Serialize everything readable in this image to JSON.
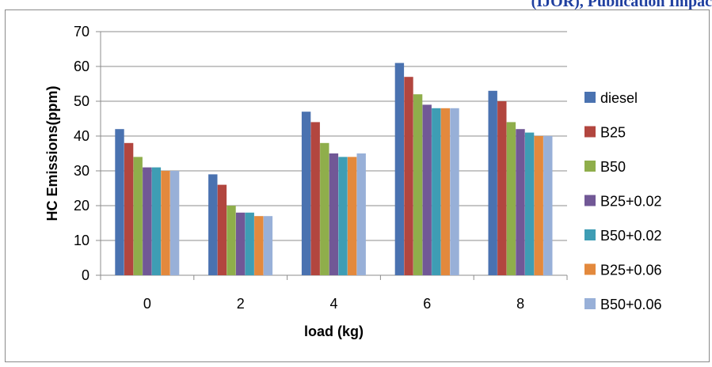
{
  "header": {
    "fragment": "(IJOR), Publication Impac"
  },
  "chart_data": {
    "type": "bar",
    "title": "",
    "xlabel": "load (kg)",
    "ylabel": "HC Emissions(ppm)",
    "ylim": [
      0,
      70
    ],
    "yticks": [
      0,
      10,
      20,
      30,
      40,
      50,
      60,
      70
    ],
    "grid": true,
    "legend_position": "right",
    "categories": [
      "0",
      "2",
      "4",
      "6",
      "8"
    ],
    "series": [
      {
        "name": "diesel",
        "color": "#4a72b0",
        "values": [
          42,
          29,
          47,
          61,
          53
        ]
      },
      {
        "name": "B25",
        "color": "#b2463f",
        "values": [
          38,
          26,
          44,
          57,
          50
        ]
      },
      {
        "name": "B50",
        "color": "#8fae4b",
        "values": [
          34,
          20,
          38,
          52,
          44
        ]
      },
      {
        "name": "B25+0.02",
        "color": "#715896",
        "values": [
          31,
          18,
          35,
          49,
          42
        ]
      },
      {
        "name": "B50+0.02",
        "color": "#3e9db4",
        "values": [
          31,
          18,
          34,
          48,
          41
        ]
      },
      {
        "name": "B25+0.06",
        "color": "#e3893d",
        "values": [
          30,
          17,
          34,
          48,
          40
        ]
      },
      {
        "name": "B50+0.06",
        "color": "#98b0d8",
        "values": [
          30,
          17,
          35,
          48,
          40
        ]
      }
    ]
  }
}
